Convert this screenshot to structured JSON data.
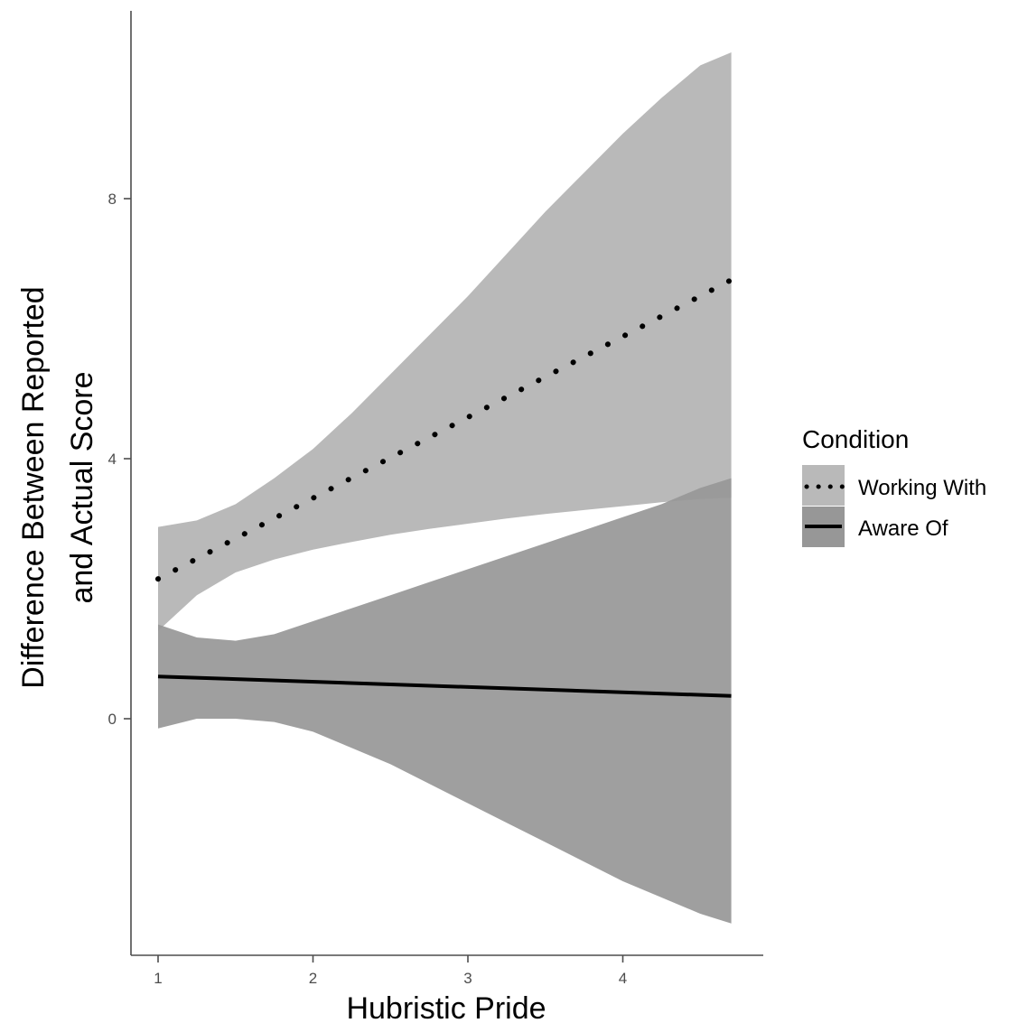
{
  "chart_data": {
    "type": "line",
    "title": "",
    "xlabel": "Hubristic Pride",
    "ylabel_line1": "Difference Between Reported",
    "ylabel_line2": "and Actual Score",
    "xlim": [
      0.8,
      4.95
    ],
    "ylim": [
      -3.5,
      10.8
    ],
    "x_ticks": [
      1,
      2,
      3,
      4
    ],
    "x_tick_labels": [
      "1",
      "2",
      "3",
      "4"
    ],
    "y_ticks": [
      0,
      4,
      8
    ],
    "y_tick_labels": [
      "0",
      "4",
      "8"
    ],
    "grid": false,
    "legend": {
      "title": "Condition",
      "position": "right",
      "entries": [
        "Working With",
        "Aware Of"
      ]
    },
    "series": [
      {
        "name": "Working With",
        "line_style": "dotted",
        "line_color": "#000000",
        "band_color": "#b9b9b9",
        "x": [
          1.0,
          4.7
        ],
        "y": [
          2.15,
          6.75
        ],
        "band": {
          "x": [
            1.0,
            1.25,
            1.5,
            1.75,
            2.0,
            2.25,
            2.5,
            2.75,
            3.0,
            3.25,
            3.5,
            3.75,
            4.0,
            4.25,
            4.5,
            4.7
          ],
          "lower": [
            1.35,
            1.9,
            2.25,
            2.45,
            2.6,
            2.72,
            2.83,
            2.92,
            3.0,
            3.08,
            3.15,
            3.21,
            3.27,
            3.33,
            3.38,
            3.4
          ],
          "upper": [
            2.95,
            3.05,
            3.3,
            3.7,
            4.15,
            4.7,
            5.3,
            5.9,
            6.5,
            7.15,
            7.8,
            8.4,
            9.0,
            9.55,
            10.05,
            10.25
          ]
        }
      },
      {
        "name": "Aware Of",
        "line_style": "solid",
        "line_color": "#000000",
        "band_color": "#979797",
        "x": [
          1.0,
          4.7
        ],
        "y": [
          0.65,
          0.35
        ],
        "band": {
          "x": [
            1.0,
            1.25,
            1.5,
            1.75,
            2.0,
            2.25,
            2.5,
            2.75,
            3.0,
            3.25,
            3.5,
            3.75,
            4.0,
            4.25,
            4.5,
            4.7
          ],
          "lower": [
            -0.15,
            0.0,
            0.0,
            -0.05,
            -0.2,
            -0.45,
            -0.7,
            -1.0,
            -1.3,
            -1.6,
            -1.9,
            -2.2,
            -2.5,
            -2.75,
            -3.0,
            -3.15
          ],
          "upper": [
            1.45,
            1.25,
            1.2,
            1.3,
            1.5,
            1.7,
            1.9,
            2.1,
            2.3,
            2.5,
            2.7,
            2.9,
            3.1,
            3.3,
            3.55,
            3.7
          ]
        }
      }
    ]
  }
}
